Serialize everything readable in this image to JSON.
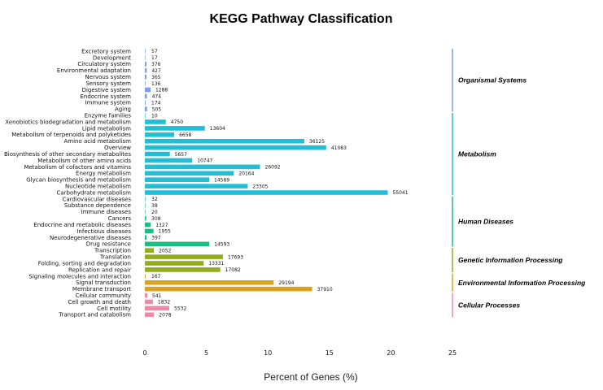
{
  "chart_data": {
    "type": "bar",
    "orientation": "horizontal",
    "title": "KEGG Pathway Classification",
    "xlabel": "Percent of Genes (%)",
    "xlim": [
      0,
      25
    ],
    "xticks": [
      "0",
      "5",
      "10",
      "15",
      "20",
      "25"
    ],
    "grid": false,
    "categories": [
      "Excretory system",
      "Development",
      "Circulatory system",
      "Environmental adaptation",
      "Nervous system",
      "Sensory system",
      "Digestive system",
      "Endocrine system",
      "Immune system",
      "Aging",
      "Enzyme families",
      "Xenobiotics biodegradation and metabolism",
      "Lipid metabolism",
      "Metabolism of terpenoids and polyketides",
      "Amino acid metabolism",
      "Overview",
      "Biosynthesis of other secondary metabolites",
      "Metabolism of other amino acids",
      "Metabolism of cofactors and vitamins",
      "Energy metabolism",
      "Glycan biosynthesis and metabolism",
      "Nucleotide metabolism",
      "Carbohydrate metabolism",
      "Cardiovascular diseases",
      "Substance dependence",
      "Immune diseases",
      "Cancers",
      "Endocrine and metabolic diseases",
      "Infectious diseases",
      "Neurodegenerative diseases",
      "Drug resistance",
      "Transcription",
      "Translation",
      "Folding, sorting and degradation",
      "Replication and repair",
      "Signaling molecules and interaction",
      "Signal transduction",
      "Membrane transport",
      "Cellular community",
      "Cell growth and death",
      "Cell motility",
      "Transport and catabolism"
    ],
    "counts": [
      57,
      17,
      376,
      427,
      365,
      136,
      1288,
      474,
      174,
      505,
      10,
      4750,
      13604,
      6658,
      36125,
      41083,
      5657,
      10747,
      26092,
      20164,
      14569,
      23305,
      55041,
      32,
      38,
      20,
      308,
      1327,
      1955,
      397,
      14593,
      2052,
      17693,
      13331,
      17082,
      167,
      29194,
      37910,
      541,
      1832,
      5532,
      2078
    ],
    "percent_per_count": 0.0003587,
    "groups": [
      {
        "name": "Organismal Systems",
        "start": 0,
        "end": 9,
        "color": "#7b9fea"
      },
      {
        "name": "Metabolism",
        "start": 10,
        "end": 22,
        "color": "#1fbfd8"
      },
      {
        "name": "Human Diseases",
        "start": 23,
        "end": 30,
        "color": "#1fbd83"
      },
      {
        "name": "Genetic Information Processing",
        "start": 31,
        "end": 34,
        "color": "#92ad1e"
      },
      {
        "name": "Environmental Information Processing",
        "start": 35,
        "end": 37,
        "color": "#dba31d"
      },
      {
        "name": "Cellular Processes",
        "start": 38,
        "end": 41,
        "color": "#f08aa6"
      }
    ]
  }
}
